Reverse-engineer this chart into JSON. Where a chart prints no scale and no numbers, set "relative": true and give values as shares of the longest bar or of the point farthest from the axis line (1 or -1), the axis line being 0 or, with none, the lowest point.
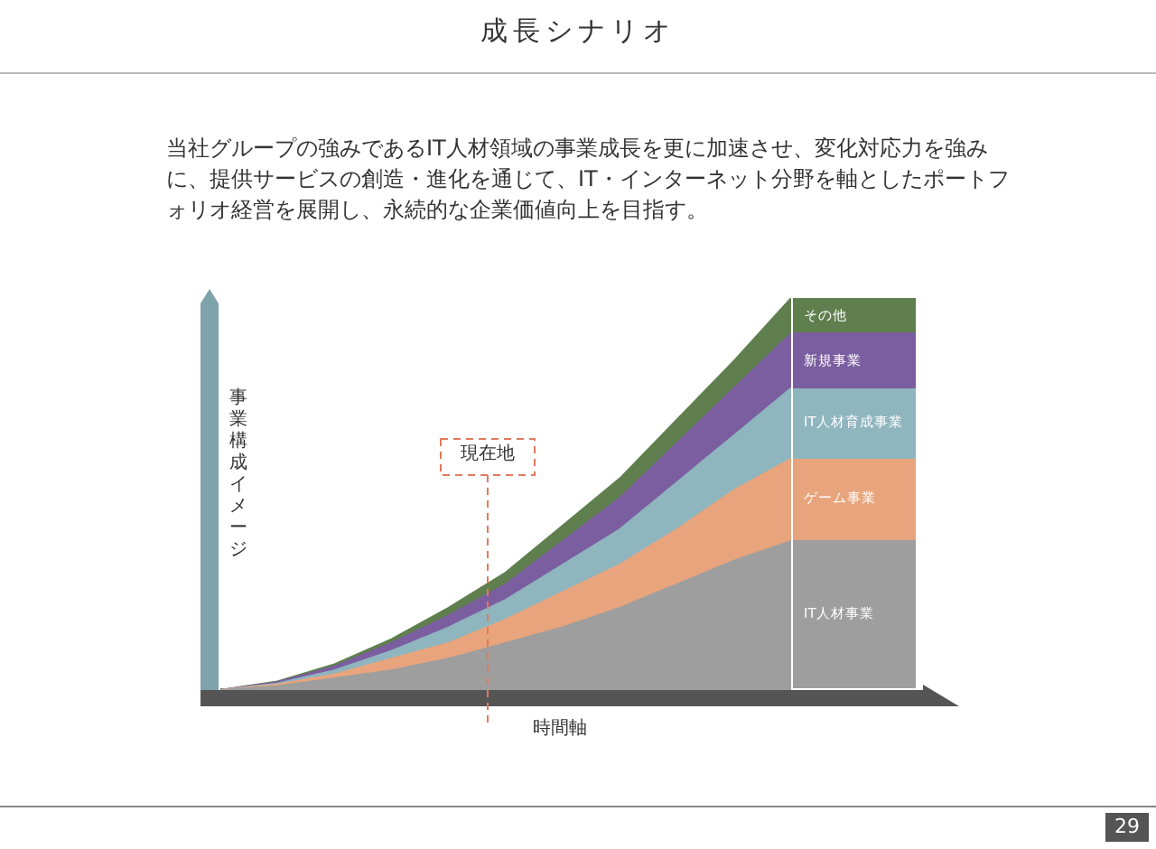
{
  "chart_data": {
    "type": "area",
    "stacked": true,
    "relative": true,
    "title": "成長シナリオ",
    "subtitle": "当社グループの強みであるIT人材領域の事業成長を更に加速させ、変化対応力を強みに、提供サービスの創造・進化を通じて、IT・インターネット分野を軸としたポートフォリオ経営を展開し、永続的な企業価値向上を目指す。",
    "xlabel": "時間軸",
    "ylabel": "事業構成イメージ",
    "categories": [
      null,
      null,
      null,
      null,
      null,
      null,
      null,
      null,
      null,
      null,
      null
    ],
    "tick_labels": false,
    "legend": "right",
    "series": [
      {
        "name": "IT人材事業",
        "color": "#9e9e9e",
        "values": [
          0,
          0.01,
          0.03,
          0.05,
          0.08,
          0.12,
          0.16,
          0.21,
          0.27,
          0.33,
          0.38
        ]
      },
      {
        "name": "ゲーム事業",
        "color": "#e8a47c",
        "values": [
          0,
          0.004,
          0.01,
          0.03,
          0.04,
          0.06,
          0.09,
          0.11,
          0.14,
          0.18,
          0.21
        ]
      },
      {
        "name": "IT人材育成事業",
        "color": "#8fb5bf",
        "values": [
          0,
          0.003,
          0.01,
          0.02,
          0.04,
          0.05,
          0.07,
          0.09,
          0.12,
          0.14,
          0.18
        ]
      },
      {
        "name": "新規事業",
        "color": "#7b5ea0",
        "values": [
          0,
          0.003,
          0.01,
          0.02,
          0.03,
          0.04,
          0.06,
          0.08,
          0.1,
          0.12,
          0.14
        ]
      },
      {
        "name": "その他",
        "color": "#5f7f4e",
        "values": [
          0,
          0.002,
          0.006,
          0.01,
          0.02,
          0.03,
          0.04,
          0.05,
          0.06,
          0.07,
          0.09
        ]
      }
    ],
    "annotations": [
      "現在地",
      "29"
    ]
  }
}
